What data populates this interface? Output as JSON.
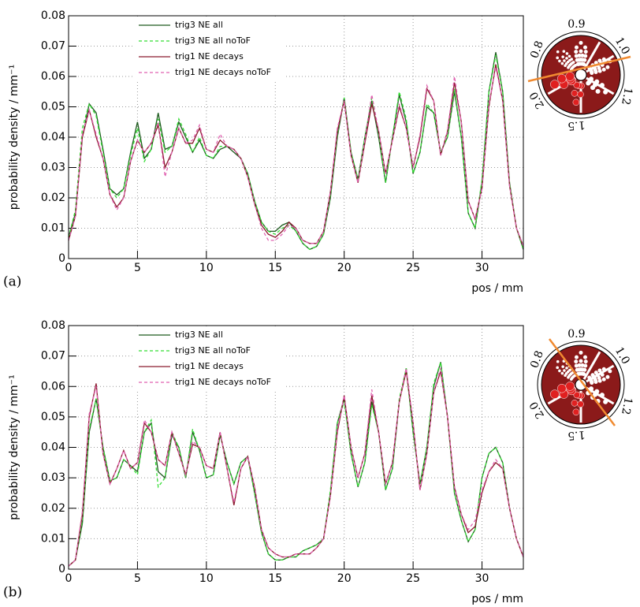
{
  "chart_data": [
    {
      "type": "line",
      "panel_label": "(a)",
      "ylabel": "probability density / mm⁻¹",
      "xlabel": "pos / mm",
      "xlim": [
        0,
        33
      ],
      "ylim": [
        0,
        0.08
      ],
      "xticks": [
        0,
        5,
        10,
        15,
        20,
        25,
        30
      ],
      "yticks": [
        0,
        0.01,
        0.02,
        0.03,
        0.04,
        0.05,
        0.06,
        0.07,
        0.08
      ],
      "grid": true,
      "inset_labels": [
        "0.9",
        "1.0",
        "1.2",
        "1.5",
        "2.0",
        "0.8"
      ],
      "x": [
        0,
        0.5,
        1,
        1.5,
        2,
        2.5,
        3,
        3.5,
        4,
        4.5,
        5,
        5.5,
        6,
        6.5,
        7,
        7.5,
        8,
        8.5,
        9,
        9.5,
        10,
        10.5,
        11,
        11.5,
        12,
        12.5,
        13,
        13.5,
        14,
        14.5,
        15,
        15.5,
        16,
        16.5,
        17,
        17.5,
        18,
        18.5,
        19,
        19.5,
        20,
        20.5,
        21,
        21.5,
        22,
        22.5,
        23,
        23.5,
        24,
        24.5,
        25,
        25.5,
        26,
        26.5,
        27,
        27.5,
        28,
        28.5,
        29,
        29.5,
        30,
        30.5,
        31,
        31.5,
        32,
        32.5,
        33
      ],
      "series": [
        {
          "name": "trig3 NE all",
          "color": "#1e5a1e",
          "dashed": false,
          "values": [
            0.007,
            0.015,
            0.04,
            0.051,
            0.048,
            0.036,
            0.023,
            0.021,
            0.023,
            0.035,
            0.045,
            0.033,
            0.036,
            0.048,
            0.036,
            0.037,
            0.045,
            0.04,
            0.035,
            0.039,
            0.034,
            0.033,
            0.036,
            0.037,
            0.035,
            0.033,
            0.028,
            0.019,
            0.012,
            0.009,
            0.009,
            0.011,
            0.012,
            0.009,
            0.005,
            0.003,
            0.004,
            0.008,
            0.02,
            0.04,
            0.053,
            0.035,
            0.026,
            0.04,
            0.052,
            0.04,
            0.025,
            0.04,
            0.054,
            0.045,
            0.028,
            0.035,
            0.05,
            0.048,
            0.035,
            0.04,
            0.055,
            0.04,
            0.015,
            0.01,
            0.025,
            0.055,
            0.068,
            0.055,
            0.025,
            0.01,
            0.003
          ]
        },
        {
          "name": "trig3 NE all noToF",
          "color": "#33dd33",
          "dashed": true,
          "values": [
            0.007,
            0.016,
            0.043,
            0.051,
            0.047,
            0.035,
            0.023,
            0.02,
            0.023,
            0.034,
            0.043,
            0.032,
            0.036,
            0.046,
            0.035,
            0.037,
            0.046,
            0.041,
            0.035,
            0.04,
            0.034,
            0.033,
            0.037,
            0.037,
            0.036,
            0.033,
            0.028,
            0.019,
            0.012,
            0.009,
            0.008,
            0.01,
            0.011,
            0.009,
            0.005,
            0.003,
            0.004,
            0.008,
            0.021,
            0.041,
            0.053,
            0.035,
            0.026,
            0.04,
            0.053,
            0.041,
            0.025,
            0.04,
            0.055,
            0.046,
            0.028,
            0.035,
            0.051,
            0.048,
            0.035,
            0.04,
            0.056,
            0.04,
            0.015,
            0.01,
            0.026,
            0.055,
            0.067,
            0.055,
            0.025,
            0.01,
            0.003
          ]
        },
        {
          "name": "trig1 NE decays",
          "color": "#8b1a2e",
          "dashed": false,
          "values": [
            0.006,
            0.014,
            0.04,
            0.049,
            0.04,
            0.033,
            0.021,
            0.017,
            0.02,
            0.032,
            0.039,
            0.035,
            0.038,
            0.044,
            0.03,
            0.035,
            0.043,
            0.038,
            0.038,
            0.043,
            0.036,
            0.035,
            0.039,
            0.037,
            0.036,
            0.033,
            0.027,
            0.018,
            0.011,
            0.008,
            0.007,
            0.009,
            0.012,
            0.01,
            0.006,
            0.005,
            0.005,
            0.009,
            0.022,
            0.042,
            0.052,
            0.034,
            0.025,
            0.038,
            0.051,
            0.042,
            0.028,
            0.039,
            0.05,
            0.043,
            0.03,
            0.04,
            0.056,
            0.052,
            0.034,
            0.042,
            0.058,
            0.045,
            0.019,
            0.013,
            0.023,
            0.05,
            0.064,
            0.052,
            0.024,
            0.01,
            0.004
          ]
        },
        {
          "name": "trig1 NE decays noToF",
          "color": "#e060b0",
          "dashed": true,
          "values": [
            0.006,
            0.014,
            0.041,
            0.049,
            0.041,
            0.033,
            0.021,
            0.016,
            0.02,
            0.032,
            0.039,
            0.035,
            0.038,
            0.045,
            0.027,
            0.035,
            0.043,
            0.038,
            0.039,
            0.044,
            0.036,
            0.035,
            0.041,
            0.037,
            0.036,
            0.033,
            0.027,
            0.018,
            0.01,
            0.006,
            0.006,
            0.008,
            0.011,
            0.01,
            0.006,
            0.005,
            0.005,
            0.009,
            0.022,
            0.043,
            0.052,
            0.034,
            0.025,
            0.039,
            0.054,
            0.042,
            0.028,
            0.039,
            0.051,
            0.043,
            0.03,
            0.041,
            0.057,
            0.052,
            0.034,
            0.042,
            0.06,
            0.045,
            0.019,
            0.013,
            0.023,
            0.051,
            0.063,
            0.052,
            0.024,
            0.01,
            0.004
          ]
        }
      ]
    },
    {
      "type": "line",
      "panel_label": "(b)",
      "ylabel": "probability density / mm⁻¹",
      "xlabel": "pos / mm",
      "xlim": [
        0,
        33
      ],
      "ylim": [
        0,
        0.08
      ],
      "xticks": [
        0,
        5,
        10,
        15,
        20,
        25,
        30
      ],
      "yticks": [
        0,
        0.01,
        0.02,
        0.03,
        0.04,
        0.05,
        0.06,
        0.07,
        0.08
      ],
      "grid": true,
      "inset_labels": [
        "0.9",
        "1.0",
        "1.2",
        "1.5",
        "2.0",
        "0.8"
      ],
      "x": [
        0,
        0.5,
        1,
        1.5,
        2,
        2.5,
        3,
        3.5,
        4,
        4.5,
        5,
        5.5,
        6,
        6.5,
        7,
        7.5,
        8,
        8.5,
        9,
        9.5,
        10,
        10.5,
        11,
        11.5,
        12,
        12.5,
        13,
        13.5,
        14,
        14.5,
        15,
        15.5,
        16,
        16.5,
        17,
        17.5,
        18,
        18.5,
        19,
        19.5,
        20,
        20.5,
        21,
        21.5,
        22,
        22.5,
        23,
        23.5,
        24,
        24.5,
        25,
        25.5,
        26,
        26.5,
        27,
        27.5,
        28,
        28.5,
        29,
        29.5,
        30,
        30.5,
        31,
        31.5,
        32,
        32.5,
        33
      ],
      "series": [
        {
          "name": "trig3 NE all",
          "color": "#1e5a1e",
          "dashed": false,
          "values": [
            0.001,
            0.003,
            0.015,
            0.045,
            0.056,
            0.04,
            0.029,
            0.03,
            0.036,
            0.034,
            0.032,
            0.045,
            0.048,
            0.032,
            0.03,
            0.044,
            0.04,
            0.03,
            0.045,
            0.039,
            0.03,
            0.031,
            0.044,
            0.035,
            0.028,
            0.035,
            0.037,
            0.025,
            0.012,
            0.005,
            0.003,
            0.003,
            0.004,
            0.004,
            0.006,
            0.007,
            0.008,
            0.01,
            0.025,
            0.048,
            0.056,
            0.038,
            0.027,
            0.035,
            0.055,
            0.045,
            0.026,
            0.033,
            0.055,
            0.066,
            0.045,
            0.028,
            0.04,
            0.06,
            0.068,
            0.05,
            0.025,
            0.016,
            0.009,
            0.013,
            0.03,
            0.038,
            0.04,
            0.035,
            0.02,
            0.01,
            0.004
          ]
        },
        {
          "name": "trig3 NE all noToF",
          "color": "#33dd33",
          "dashed": true,
          "values": [
            0.001,
            0.003,
            0.016,
            0.046,
            0.056,
            0.04,
            0.029,
            0.03,
            0.036,
            0.034,
            0.031,
            0.045,
            0.049,
            0.027,
            0.03,
            0.045,
            0.04,
            0.03,
            0.046,
            0.039,
            0.03,
            0.031,
            0.044,
            0.035,
            0.028,
            0.035,
            0.037,
            0.025,
            0.012,
            0.005,
            0.003,
            0.003,
            0.004,
            0.004,
            0.006,
            0.007,
            0.008,
            0.01,
            0.026,
            0.048,
            0.055,
            0.038,
            0.027,
            0.035,
            0.054,
            0.045,
            0.026,
            0.033,
            0.056,
            0.066,
            0.045,
            0.028,
            0.04,
            0.061,
            0.068,
            0.05,
            0.025,
            0.016,
            0.009,
            0.013,
            0.03,
            0.038,
            0.04,
            0.035,
            0.02,
            0.01,
            0.004
          ]
        },
        {
          "name": "trig1 NE decays",
          "color": "#8b1a2e",
          "dashed": false,
          "values": [
            0.001,
            0.003,
            0.018,
            0.05,
            0.061,
            0.038,
            0.028,
            0.033,
            0.039,
            0.033,
            0.035,
            0.048,
            0.045,
            0.036,
            0.034,
            0.045,
            0.038,
            0.031,
            0.041,
            0.04,
            0.034,
            0.033,
            0.045,
            0.033,
            0.021,
            0.033,
            0.037,
            0.027,
            0.013,
            0.007,
            0.005,
            0.004,
            0.004,
            0.005,
            0.005,
            0.005,
            0.007,
            0.01,
            0.024,
            0.045,
            0.057,
            0.04,
            0.03,
            0.038,
            0.057,
            0.045,
            0.028,
            0.035,
            0.055,
            0.065,
            0.048,
            0.026,
            0.038,
            0.058,
            0.065,
            0.05,
            0.027,
            0.018,
            0.012,
            0.014,
            0.025,
            0.032,
            0.035,
            0.033,
            0.02,
            0.01,
            0.004
          ]
        },
        {
          "name": "trig1 NE decays noToF",
          "color": "#e060b0",
          "dashed": true,
          "values": [
            0.001,
            0.003,
            0.019,
            0.051,
            0.06,
            0.038,
            0.028,
            0.033,
            0.039,
            0.033,
            0.035,
            0.049,
            0.045,
            0.036,
            0.034,
            0.045,
            0.038,
            0.031,
            0.042,
            0.04,
            0.034,
            0.033,
            0.045,
            0.033,
            0.022,
            0.033,
            0.037,
            0.027,
            0.013,
            0.007,
            0.005,
            0.004,
            0.004,
            0.005,
            0.005,
            0.005,
            0.007,
            0.01,
            0.024,
            0.046,
            0.057,
            0.04,
            0.03,
            0.038,
            0.059,
            0.045,
            0.028,
            0.035,
            0.055,
            0.066,
            0.048,
            0.026,
            0.038,
            0.058,
            0.066,
            0.05,
            0.027,
            0.018,
            0.013,
            0.016,
            0.026,
            0.032,
            0.036,
            0.033,
            0.02,
            0.01,
            0.004
          ]
        }
      ]
    }
  ]
}
